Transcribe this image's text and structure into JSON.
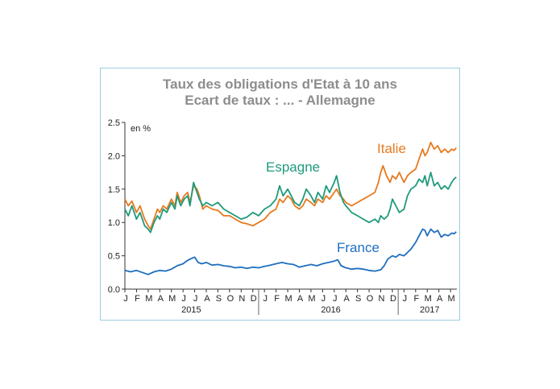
{
  "chart_data": {
    "type": "line",
    "title": "Taux des obligations d'Etat à 10 ans",
    "subtitle": "Ecart de taux : ... - Allemagne",
    "unit_label": "en %",
    "ylim": [
      0,
      2.5
    ],
    "yticks": [
      "0.0",
      "0.5",
      "1.0",
      "1.5",
      "2.0",
      "2.5"
    ],
    "month_labels": [
      "J",
      "F",
      "M",
      "A",
      "M",
      "J",
      "J",
      "A",
      "S",
      "O",
      "N",
      "D",
      "J",
      "F",
      "M",
      "A",
      "M",
      "J",
      "J",
      "A",
      "S",
      "O",
      "N",
      "D",
      "J",
      "F",
      "M",
      "A",
      "M"
    ],
    "years": [
      {
        "label": "2015",
        "first_month": 0,
        "last_month": 11
      },
      {
        "label": "2016",
        "first_month": 12,
        "last_month": 23
      },
      {
        "label": "2017",
        "first_month": 24,
        "last_month": 28
      }
    ],
    "x_unit": "months since Jan 2015",
    "series": [
      {
        "name": "Italie",
        "color": "#e8791e",
        "points": [
          [
            0,
            1.35
          ],
          [
            0.3,
            1.25
          ],
          [
            0.6,
            1.32
          ],
          [
            1.0,
            1.15
          ],
          [
            1.3,
            1.25
          ],
          [
            1.7,
            1.05
          ],
          [
            2.0,
            0.95
          ],
          [
            2.2,
            0.9
          ],
          [
            2.5,
            1.05
          ],
          [
            2.8,
            1.2
          ],
          [
            3.0,
            1.15
          ],
          [
            3.3,
            1.25
          ],
          [
            3.6,
            1.2
          ],
          [
            4.0,
            1.35
          ],
          [
            4.3,
            1.25
          ],
          [
            4.5,
            1.45
          ],
          [
            4.8,
            1.3
          ],
          [
            5.1,
            1.4
          ],
          [
            5.4,
            1.45
          ],
          [
            5.6,
            1.3
          ],
          [
            5.9,
            1.55
          ],
          [
            6.2,
            1.5
          ],
          [
            6.4,
            1.4
          ],
          [
            6.7,
            1.2
          ],
          [
            7.0,
            1.25
          ],
          [
            7.5,
            1.2
          ],
          [
            8.0,
            1.18
          ],
          [
            8.5,
            1.1
          ],
          [
            9.0,
            1.1
          ],
          [
            9.5,
            1.05
          ],
          [
            10.0,
            1.0
          ],
          [
            10.5,
            0.98
          ],
          [
            11.0,
            0.95
          ],
          [
            11.5,
            1.0
          ],
          [
            12.0,
            1.05
          ],
          [
            12.5,
            1.15
          ],
          [
            13.0,
            1.2
          ],
          [
            13.3,
            1.35
          ],
          [
            13.6,
            1.3
          ],
          [
            14.0,
            1.4
          ],
          [
            14.3,
            1.35
          ],
          [
            14.6,
            1.25
          ],
          [
            15.0,
            1.2
          ],
          [
            15.3,
            1.25
          ],
          [
            15.6,
            1.35
          ],
          [
            16.0,
            1.3
          ],
          [
            16.3,
            1.25
          ],
          [
            16.6,
            1.35
          ],
          [
            17.0,
            1.3
          ],
          [
            17.3,
            1.4
          ],
          [
            17.6,
            1.35
          ],
          [
            18.0,
            1.45
          ],
          [
            18.2,
            1.5
          ],
          [
            18.5,
            1.4
          ],
          [
            18.8,
            1.35
          ],
          [
            19.0,
            1.3
          ],
          [
            19.5,
            1.25
          ],
          [
            20.0,
            1.3
          ],
          [
            20.5,
            1.35
          ],
          [
            21.0,
            1.4
          ],
          [
            21.5,
            1.45
          ],
          [
            21.8,
            1.6
          ],
          [
            22.0,
            1.75
          ],
          [
            22.2,
            1.85
          ],
          [
            22.5,
            1.7
          ],
          [
            22.8,
            1.6
          ],
          [
            23.0,
            1.7
          ],
          [
            23.3,
            1.65
          ],
          [
            23.6,
            1.75
          ],
          [
            24.0,
            1.6
          ],
          [
            24.3,
            1.7
          ],
          [
            24.6,
            1.75
          ],
          [
            25.0,
            1.8
          ],
          [
            25.3,
            1.95
          ],
          [
            25.6,
            2.1
          ],
          [
            25.8,
            2.0
          ],
          [
            26.0,
            2.05
          ],
          [
            26.3,
            2.2
          ],
          [
            26.6,
            2.1
          ],
          [
            26.9,
            2.15
          ],
          [
            27.2,
            2.05
          ],
          [
            27.5,
            2.1
          ],
          [
            27.8,
            2.05
          ],
          [
            28.1,
            2.1
          ],
          [
            28.3,
            2.08
          ],
          [
            28.5,
            2.12
          ]
        ]
      },
      {
        "name": "Espagne",
        "color": "#1f9a7c",
        "points": [
          [
            0,
            1.2
          ],
          [
            0.3,
            1.1
          ],
          [
            0.6,
            1.25
          ],
          [
            1.0,
            1.05
          ],
          [
            1.3,
            1.15
          ],
          [
            1.7,
            0.95
          ],
          [
            2.0,
            0.9
          ],
          [
            2.2,
            0.85
          ],
          [
            2.5,
            1.0
          ],
          [
            2.8,
            1.1
          ],
          [
            3.0,
            1.05
          ],
          [
            3.3,
            1.2
          ],
          [
            3.6,
            1.15
          ],
          [
            4.0,
            1.3
          ],
          [
            4.3,
            1.2
          ],
          [
            4.5,
            1.4
          ],
          [
            4.8,
            1.25
          ],
          [
            5.1,
            1.35
          ],
          [
            5.4,
            1.4
          ],
          [
            5.6,
            1.25
          ],
          [
            5.9,
            1.6
          ],
          [
            6.2,
            1.45
          ],
          [
            6.4,
            1.35
          ],
          [
            6.7,
            1.25
          ],
          [
            7.0,
            1.3
          ],
          [
            7.5,
            1.25
          ],
          [
            8.0,
            1.3
          ],
          [
            8.5,
            1.2
          ],
          [
            9.0,
            1.15
          ],
          [
            9.5,
            1.1
          ],
          [
            10.0,
            1.05
          ],
          [
            10.5,
            1.08
          ],
          [
            11.0,
            1.15
          ],
          [
            11.5,
            1.1
          ],
          [
            12.0,
            1.2
          ],
          [
            12.5,
            1.25
          ],
          [
            13.0,
            1.35
          ],
          [
            13.3,
            1.55
          ],
          [
            13.6,
            1.4
          ],
          [
            14.0,
            1.5
          ],
          [
            14.3,
            1.4
          ],
          [
            14.6,
            1.3
          ],
          [
            15.0,
            1.25
          ],
          [
            15.3,
            1.35
          ],
          [
            15.6,
            1.5
          ],
          [
            16.0,
            1.4
          ],
          [
            16.3,
            1.3
          ],
          [
            16.6,
            1.45
          ],
          [
            17.0,
            1.35
          ],
          [
            17.3,
            1.55
          ],
          [
            17.6,
            1.45
          ],
          [
            18.0,
            1.6
          ],
          [
            18.2,
            1.7
          ],
          [
            18.5,
            1.45
          ],
          [
            18.8,
            1.3
          ],
          [
            19.0,
            1.25
          ],
          [
            19.5,
            1.15
          ],
          [
            20.0,
            1.1
          ],
          [
            20.5,
            1.05
          ],
          [
            21.0,
            1.0
          ],
          [
            21.5,
            1.05
          ],
          [
            21.8,
            1.0
          ],
          [
            22.0,
            1.1
          ],
          [
            22.3,
            1.05
          ],
          [
            22.6,
            1.1
          ],
          [
            22.8,
            1.2
          ],
          [
            23.0,
            1.35
          ],
          [
            23.3,
            1.25
          ],
          [
            23.6,
            1.15
          ],
          [
            24.0,
            1.2
          ],
          [
            24.3,
            1.4
          ],
          [
            24.6,
            1.5
          ],
          [
            25.0,
            1.55
          ],
          [
            25.3,
            1.65
          ],
          [
            25.6,
            1.6
          ],
          [
            25.8,
            1.7
          ],
          [
            26.0,
            1.55
          ],
          [
            26.3,
            1.75
          ],
          [
            26.6,
            1.55
          ],
          [
            26.9,
            1.6
          ],
          [
            27.2,
            1.5
          ],
          [
            27.5,
            1.55
          ],
          [
            27.8,
            1.5
          ],
          [
            28.1,
            1.6
          ],
          [
            28.3,
            1.65
          ],
          [
            28.5,
            1.68
          ]
        ]
      },
      {
        "name": "France",
        "color": "#1f6fbf",
        "points": [
          [
            0,
            0.28
          ],
          [
            0.5,
            0.26
          ],
          [
            1.0,
            0.28
          ],
          [
            1.5,
            0.25
          ],
          [
            2.0,
            0.22
          ],
          [
            2.5,
            0.26
          ],
          [
            3.0,
            0.28
          ],
          [
            3.5,
            0.27
          ],
          [
            4.0,
            0.3
          ],
          [
            4.5,
            0.35
          ],
          [
            5.0,
            0.38
          ],
          [
            5.3,
            0.42
          ],
          [
            5.6,
            0.45
          ],
          [
            6.0,
            0.48
          ],
          [
            6.3,
            0.4
          ],
          [
            6.6,
            0.38
          ],
          [
            7.0,
            0.4
          ],
          [
            7.5,
            0.36
          ],
          [
            8.0,
            0.37
          ],
          [
            8.5,
            0.35
          ],
          [
            9.0,
            0.34
          ],
          [
            9.5,
            0.32
          ],
          [
            10.0,
            0.33
          ],
          [
            10.5,
            0.31
          ],
          [
            11.0,
            0.33
          ],
          [
            11.5,
            0.32
          ],
          [
            12.0,
            0.34
          ],
          [
            12.5,
            0.36
          ],
          [
            13.0,
            0.38
          ],
          [
            13.5,
            0.4
          ],
          [
            14.0,
            0.38
          ],
          [
            14.5,
            0.37
          ],
          [
            15.0,
            0.33
          ],
          [
            15.5,
            0.35
          ],
          [
            16.0,
            0.37
          ],
          [
            16.5,
            0.35
          ],
          [
            17.0,
            0.38
          ],
          [
            17.5,
            0.4
          ],
          [
            18.0,
            0.42
          ],
          [
            18.3,
            0.44
          ],
          [
            18.6,
            0.35
          ],
          [
            19.0,
            0.32
          ],
          [
            19.5,
            0.3
          ],
          [
            20.0,
            0.31
          ],
          [
            20.5,
            0.3
          ],
          [
            21.0,
            0.28
          ],
          [
            21.5,
            0.27
          ],
          [
            22.0,
            0.29
          ],
          [
            22.3,
            0.35
          ],
          [
            22.6,
            0.45
          ],
          [
            23.0,
            0.5
          ],
          [
            23.3,
            0.48
          ],
          [
            23.6,
            0.52
          ],
          [
            24.0,
            0.5
          ],
          [
            24.3,
            0.55
          ],
          [
            24.6,
            0.6
          ],
          [
            25.0,
            0.7
          ],
          [
            25.3,
            0.8
          ],
          [
            25.6,
            0.9
          ],
          [
            25.8,
            0.88
          ],
          [
            26.0,
            0.8
          ],
          [
            26.3,
            0.9
          ],
          [
            26.6,
            0.85
          ],
          [
            26.9,
            0.88
          ],
          [
            27.2,
            0.78
          ],
          [
            27.5,
            0.82
          ],
          [
            27.8,
            0.8
          ],
          [
            28.1,
            0.84
          ],
          [
            28.3,
            0.83
          ],
          [
            28.5,
            0.86
          ]
        ]
      }
    ]
  }
}
